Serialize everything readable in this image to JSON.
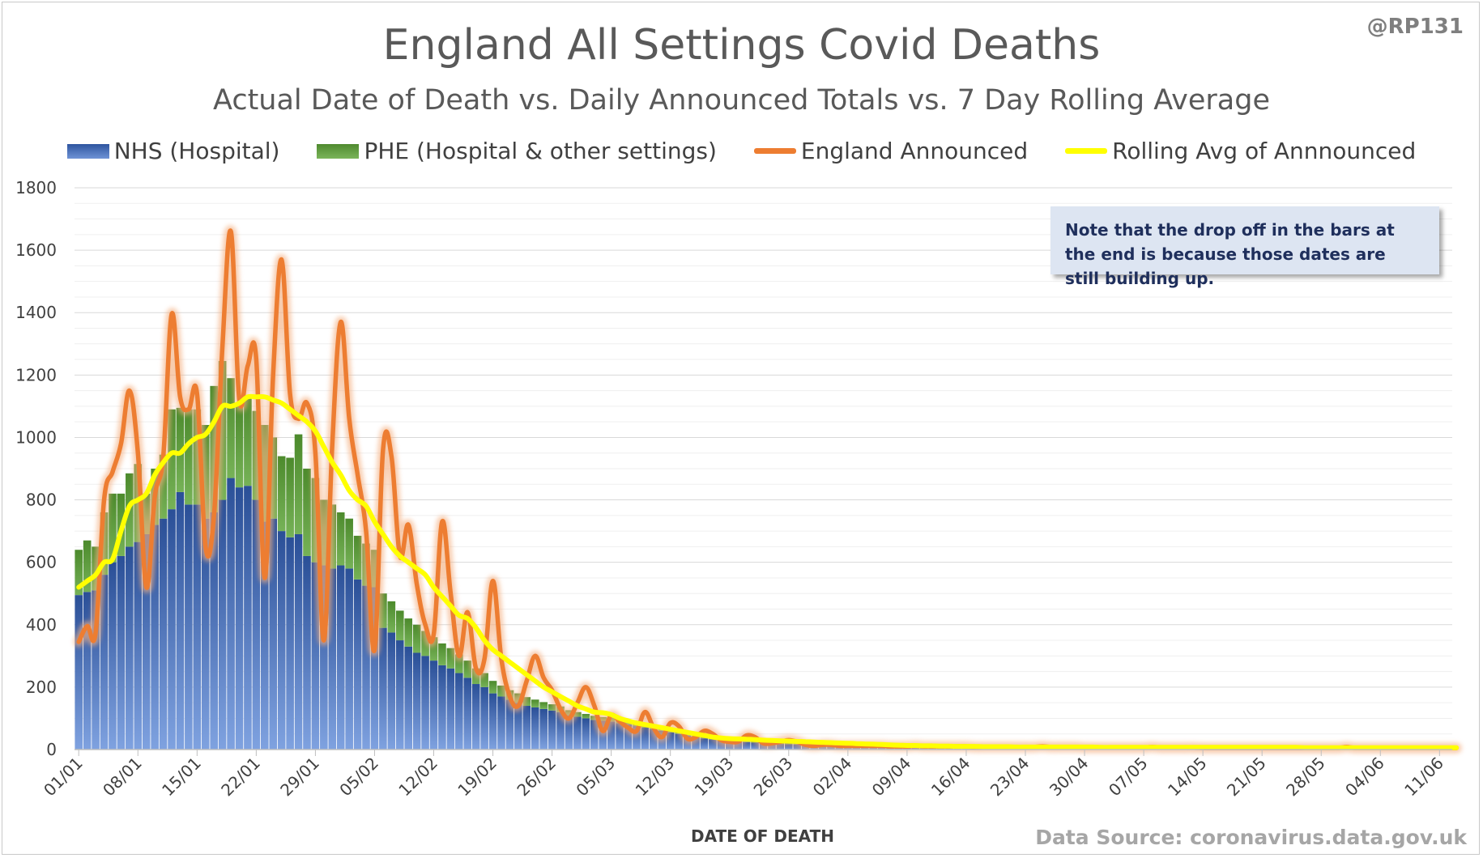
{
  "handle": "@RP131",
  "source": "Data Source: coronavirus.data.gov.uk",
  "note": "Note that the drop off in the bars at the end is because those dates are still building up.",
  "chart_data": {
    "type": "bar",
    "title": "England All Settings Covid Deaths",
    "subtitle": "Actual Date of Death vs. Daily Announced Totals vs. 7 Day Rolling Average",
    "xlabel": "DATE OF DEATH",
    "ylabel": "",
    "ylim": [
      0,
      1800
    ],
    "yticks": [
      0,
      200,
      400,
      600,
      800,
      1000,
      1200,
      1400,
      1600,
      1800
    ],
    "grid": true,
    "legend_position": "top",
    "colors": {
      "nhs": "#3a63ad",
      "phe": "#5a9a3a",
      "announced": "#ed7d31",
      "rolling": "#ffff00"
    },
    "start_date": "01/01",
    "xtick_labels": [
      "01/01",
      "08/01",
      "15/01",
      "22/01",
      "29/01",
      "05/02",
      "12/02",
      "19/02",
      "26/02",
      "05/03",
      "12/03",
      "19/03",
      "26/03",
      "02/04",
      "09/04",
      "16/04",
      "23/04",
      "30/04",
      "07/05",
      "14/05",
      "21/05",
      "28/05",
      "04/06",
      "11/06"
    ],
    "series": [
      {
        "name": "NHS (Hospital)",
        "kind": "stacked-bar",
        "values": [
          495,
          505,
          510,
          560,
          600,
          620,
          650,
          665,
          690,
          720,
          740,
          770,
          825,
          785,
          785,
          740,
          760,
          800,
          870,
          840,
          845,
          800,
          730,
          740,
          700,
          680,
          690,
          620,
          600,
          590,
          580,
          590,
          580,
          545,
          525,
          520,
          390,
          375,
          350,
          330,
          310,
          300,
          285,
          270,
          260,
          245,
          230,
          210,
          200,
          180,
          170,
          160,
          150,
          140,
          135,
          130,
          125,
          120,
          110,
          105,
          100,
          95,
          92,
          90,
          85,
          80,
          75,
          70,
          65,
          60,
          55,
          50,
          45,
          40,
          36,
          33,
          30,
          27,
          25,
          24,
          22,
          20,
          19,
          18,
          17,
          16,
          15,
          14,
          13,
          12,
          12,
          11,
          11,
          10,
          10,
          9,
          9,
          9,
          8,
          8,
          8,
          7,
          7,
          7,
          7,
          6,
          6,
          6,
          6,
          5,
          5,
          5,
          5,
          5,
          5,
          5,
          5,
          4,
          4,
          4,
          4,
          4,
          4,
          4,
          4,
          4,
          3,
          3,
          3,
          3,
          3,
          3,
          3,
          3,
          3,
          3,
          3,
          3,
          3,
          3,
          3,
          3,
          3,
          2,
          2,
          2,
          2,
          2,
          2,
          2,
          2,
          2,
          2,
          2,
          2,
          2,
          2,
          2,
          2,
          1,
          1,
          1,
          1
        ]
      },
      {
        "name": "PHE (Hospital & other settings)",
        "kind": "stacked-bar",
        "values": [
          145,
          165,
          140,
          200,
          220,
          200,
          235,
          250,
          130,
          180,
          205,
          320,
          270,
          305,
          305,
          300,
          405,
          445,
          320,
          265,
          290,
          285,
          310,
          260,
          240,
          255,
          320,
          280,
          270,
          210,
          205,
          170,
          160,
          140,
          135,
          120,
          110,
          100,
          95,
          90,
          90,
          80,
          75,
          70,
          65,
          60,
          55,
          50,
          45,
          40,
          35,
          30,
          30,
          28,
          25,
          22,
          20,
          18,
          16,
          15,
          14,
          13,
          12,
          12,
          11,
          10,
          10,
          9,
          9,
          8,
          8,
          7,
          7,
          6,
          6,
          6,
          5,
          5,
          5,
          5,
          5,
          4,
          4,
          4,
          4,
          4,
          4,
          3,
          3,
          3,
          3,
          3,
          3,
          3,
          3,
          3,
          3,
          3,
          3,
          3,
          2,
          2,
          2,
          2,
          2,
          2,
          2,
          2,
          2,
          2,
          2,
          2,
          2,
          2,
          2,
          2,
          2,
          2,
          2,
          2,
          2,
          2,
          2,
          2,
          2,
          2,
          2,
          2,
          2,
          1,
          1,
          1,
          1,
          1,
          1,
          1,
          1,
          1,
          1,
          1,
          1,
          1,
          1,
          1,
          1,
          1,
          1,
          1,
          1,
          1,
          1,
          1,
          1,
          1,
          1,
          1,
          1,
          1,
          1,
          1,
          1,
          1,
          1
        ]
      },
      {
        "name": "England Announced",
        "kind": "line",
        "values": [
          345,
          395,
          375,
          800,
          890,
          980,
          1150,
          950,
          520,
          810,
          940,
          1395,
          1130,
          1090,
          1140,
          650,
          750,
          1290,
          1660,
          1120,
          1230,
          1250,
          550,
          1200,
          1570,
          1140,
          1060,
          1110,
          950,
          350,
          980,
          1370,
          1060,
          880,
          700,
          320,
          960,
          940,
          620,
          720,
          530,
          400,
          370,
          730,
          500,
          300,
          440,
          260,
          290,
          540,
          290,
          170,
          140,
          220,
          300,
          230,
          190,
          130,
          100,
          150,
          200,
          140,
          60,
          110,
          90,
          70,
          60,
          120,
          70,
          40,
          85,
          75,
          35,
          40,
          60,
          50,
          30,
          25,
          25,
          45,
          40,
          20,
          20,
          25,
          30,
          25,
          15,
          12,
          15,
          15,
          12,
          12,
          12,
          12,
          12,
          12,
          10,
          10,
          10,
          12,
          10,
          10,
          10,
          10,
          10,
          10,
          8,
          8,
          8,
          8,
          8,
          8,
          8,
          8,
          10,
          8,
          8,
          8,
          8,
          6,
          6,
          6,
          6,
          6,
          6,
          6,
          6,
          8,
          6,
          6,
          6,
          6,
          6,
          5,
          5,
          5,
          5,
          5,
          5,
          5,
          5,
          5,
          5,
          5,
          5,
          5,
          5,
          5,
          5,
          5,
          8,
          5,
          5,
          5,
          5,
          5,
          5,
          5,
          5,
          5,
          5,
          5,
          5,
          5
        ]
      },
      {
        "name": "Rolling Avg of Annnounced",
        "kind": "line",
        "values": [
          520,
          540,
          560,
          600,
          610,
          700,
          780,
          800,
          820,
          880,
          920,
          950,
          950,
          980,
          1000,
          1010,
          1050,
          1100,
          1100,
          1110,
          1130,
          1130,
          1130,
          1120,
          1110,
          1090,
          1070,
          1050,
          1020,
          970,
          920,
          880,
          830,
          800,
          780,
          730,
          690,
          650,
          620,
          600,
          580,
          560,
          520,
          490,
          460,
          430,
          420,
          390,
          350,
          320,
          300,
          280,
          260,
          240,
          220,
          200,
          185,
          170,
          155,
          140,
          130,
          120,
          118,
          112,
          100,
          92,
          85,
          80,
          75,
          70,
          65,
          60,
          55,
          50,
          45,
          40,
          37,
          35,
          34,
          33,
          32,
          30,
          29,
          28,
          27,
          26,
          25,
          24,
          23,
          22,
          21,
          20,
          19,
          18,
          17,
          16,
          15,
          14,
          13,
          13,
          12,
          12,
          11,
          11,
          10,
          10,
          10,
          9,
          9,
          9,
          9,
          8,
          8,
          8,
          8,
          8,
          8,
          8,
          8,
          8,
          8,
          7,
          7,
          7,
          7,
          7,
          7,
          7,
          7,
          7,
          7,
          7,
          7,
          7,
          7,
          7,
          7,
          7,
          7,
          7,
          7,
          7,
          7,
          7,
          7,
          6,
          6,
          6,
          6,
          6,
          6,
          6,
          6,
          6,
          6,
          6,
          6,
          6,
          6,
          6,
          6,
          6,
          6,
          6
        ]
      }
    ]
  }
}
